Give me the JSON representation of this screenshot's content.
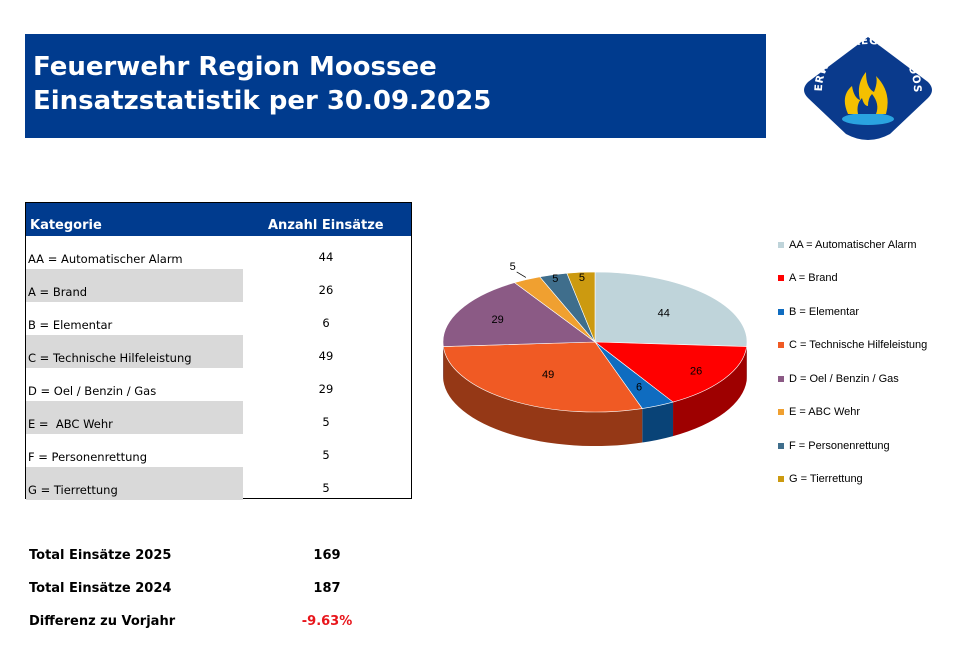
{
  "header": {
    "line1": "Feuerwehr Region Moossee",
    "line2": "Einsatzstatistik per 30.09.2025"
  },
  "logo": {
    "text": "FEUERWEHR REGION MOOSSEE",
    "icon": "flame-badge-icon",
    "colors": {
      "badge": "#0a3a8c",
      "flame": "#f5c000",
      "water": "#2aa3e0"
    }
  },
  "table": {
    "headers": [
      "Kategorie",
      "Anzahl Einsätze"
    ],
    "rows": [
      {
        "label": "AA = Automatischer Alarm",
        "value": "44"
      },
      {
        "label": "A = Brand",
        "value": "26"
      },
      {
        "label": "B = Elementar",
        "value": "6"
      },
      {
        "label": "C = Technische Hilfeleistung",
        "value": "49"
      },
      {
        "label": "D = Oel / Benzin / Gas",
        "value": "29"
      },
      {
        "label": "E =  ABC Wehr",
        "value": "5"
      },
      {
        "label": "F = Personenrettung",
        "value": "5"
      },
      {
        "label": "G = Tierrettung",
        "value": "5"
      }
    ]
  },
  "totals": [
    {
      "label": "Total Einsätze 2025",
      "value": "169"
    },
    {
      "label": "Total Einsätze 2024",
      "value": "187"
    },
    {
      "label": "Differenz zu Vorjahr",
      "value": "-9.63%"
    }
  ],
  "chart_data": {
    "type": "pie",
    "style": "3d",
    "legend_position": "right",
    "categories": [
      "AA = Automatischer Alarm",
      "A = Brand",
      "B = Elementar",
      "C = Technische Hilfeleistung",
      "D = Oel / Benzin / Gas",
      "E =  ABC Wehr",
      "F = Personenrettung",
      "G = Tierrettung"
    ],
    "values": [
      44,
      26,
      6,
      49,
      29,
      5,
      5,
      5
    ],
    "colors": [
      "#bfd4da",
      "#ff0000",
      "#0f6cc0",
      "#f05a24",
      "#8b5a85",
      "#f0a030",
      "#3f6e8c",
      "#cc9a10"
    ]
  },
  "colors": {
    "header_bg": "#003b8e",
    "row_shade": "#d9d9d9",
    "negative": "#e8151b"
  }
}
